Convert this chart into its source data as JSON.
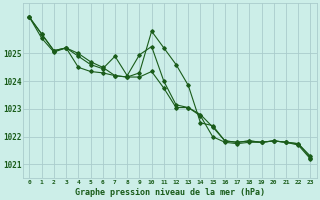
{
  "title": "Graphe pression niveau de la mer (hPa)",
  "bg_color": "#cceee8",
  "grid_color": "#aacccc",
  "line_color": "#1a5c1a",
  "xlim": [
    -0.5,
    23.5
  ],
  "ylim": [
    1020.5,
    1026.8
  ],
  "yticks": [
    1021,
    1022,
    1023,
    1024,
    1025
  ],
  "xtick_labels": [
    "0",
    "1",
    "2",
    "3",
    "4",
    "5",
    "6",
    "7",
    "8",
    "9",
    "10",
    "11",
    "12",
    "13",
    "14",
    "15",
    "16",
    "17",
    "18",
    "19",
    "20",
    "21",
    "22",
    "23"
  ],
  "series": [
    [
      1026.3,
      1025.7,
      1025.1,
      1025.2,
      1025.0,
      1024.7,
      1024.5,
      1024.2,
      1024.15,
      1024.3,
      1025.8,
      1025.2,
      1024.6,
      1023.85,
      1022.5,
      1022.4,
      1021.85,
      1021.8,
      1021.85,
      1021.8,
      1021.85,
      1021.8,
      1021.75,
      1021.3
    ],
    [
      1026.3,
      1025.7,
      1025.1,
      1025.2,
      1024.9,
      1024.6,
      1024.45,
      1024.9,
      1024.2,
      1024.95,
      1025.25,
      1024.0,
      1023.15,
      1023.05,
      1022.8,
      1022.35,
      1021.85,
      1021.8,
      1021.85,
      1021.8,
      1021.85,
      1021.8,
      1021.75,
      1021.25
    ],
    [
      1026.3,
      1025.55,
      1025.05,
      1025.2,
      1024.5,
      1024.35,
      1024.3,
      1024.2,
      1024.15,
      1024.15,
      1024.35,
      1023.75,
      1023.05,
      1023.05,
      1022.75,
      1022.0,
      1021.8,
      1021.75,
      1021.8,
      1021.8,
      1021.85,
      1021.8,
      1021.7,
      1021.2
    ]
  ]
}
